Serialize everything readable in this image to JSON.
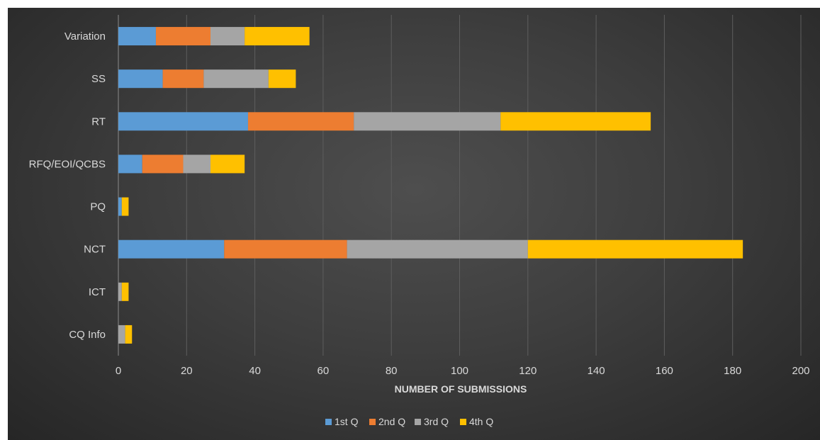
{
  "chart_data": {
    "type": "bar",
    "orientation": "horizontal",
    "stacked": true,
    "title": "",
    "xlabel": "NUMBER OF SUBMISSIONS",
    "ylabel": "",
    "xlim": [
      0,
      200
    ],
    "x_ticks": [
      0,
      20,
      40,
      60,
      80,
      100,
      120,
      140,
      160,
      180,
      200
    ],
    "grid": true,
    "legend_position": "bottom",
    "categories": [
      "CQ Info",
      "ICT",
      "NCT",
      "PQ",
      "RFQ/EOI/QCBS",
      "RT",
      "SS",
      "Variation"
    ],
    "series": [
      {
        "name": "1st Q",
        "color": "#5b9bd5",
        "values": [
          0,
          0,
          31,
          1,
          7,
          38,
          13,
          11
        ]
      },
      {
        "name": "2nd Q",
        "color": "#ed7d31",
        "values": [
          0,
          0,
          36,
          0,
          12,
          31,
          12,
          16
        ]
      },
      {
        "name": "3rd Q",
        "color": "#a5a5a5",
        "values": [
          2,
          1,
          53,
          0,
          8,
          43,
          19,
          10
        ]
      },
      {
        "name": "4th Q",
        "color": "#ffc000",
        "values": [
          2,
          2,
          63,
          2,
          10,
          44,
          8,
          19
        ]
      }
    ]
  }
}
